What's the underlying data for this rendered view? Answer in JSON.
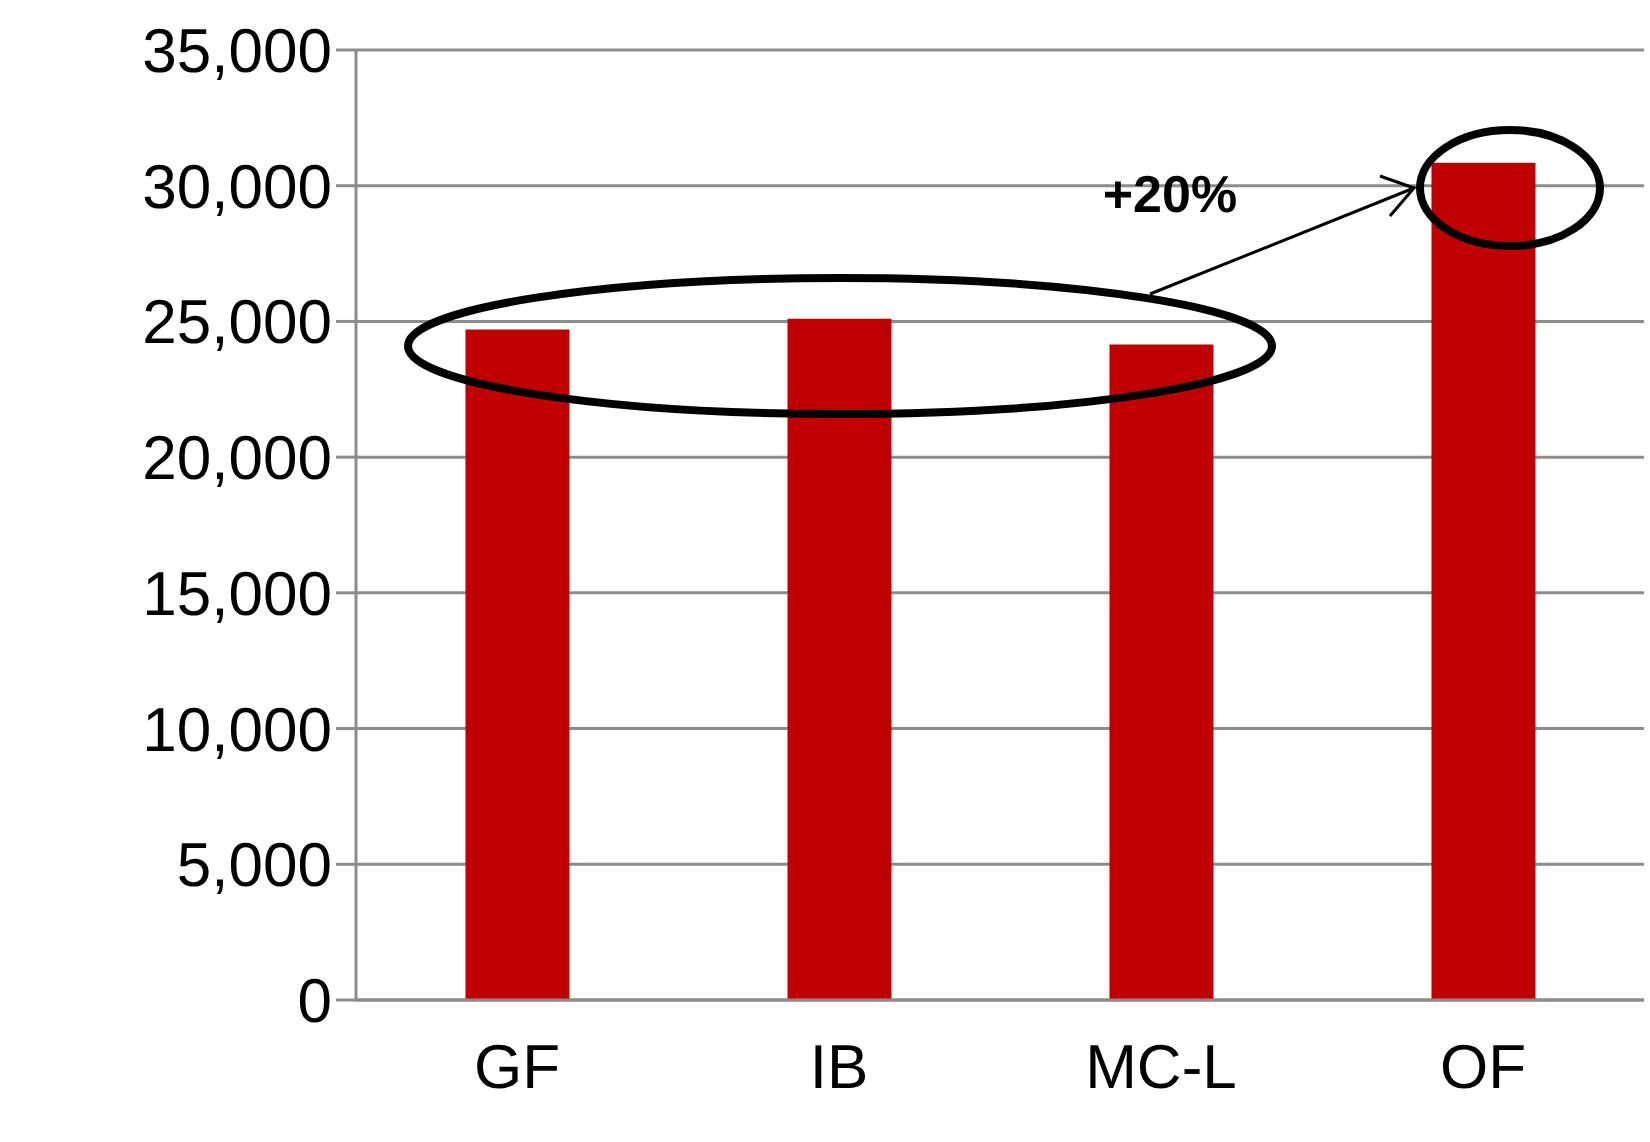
{
  "chart_data": {
    "type": "bar",
    "categories": [
      "GF",
      "IB",
      "MC-L",
      "OF"
    ],
    "values": [
      24700,
      25100,
      24150,
      30850
    ],
    "color": "#c00000",
    "ylim": [
      0,
      35000
    ],
    "yticks": [
      {
        "value": 0,
        "label": "0"
      },
      {
        "value": 5000,
        "label": "5,000"
      },
      {
        "value": 10000,
        "label": "10,000"
      },
      {
        "value": 15000,
        "label": "15,000"
      },
      {
        "value": 20000,
        "label": "20,000"
      },
      {
        "value": 25000,
        "label": "25,000"
      },
      {
        "value": 30000,
        "label": "30,000"
      },
      {
        "value": 35000,
        "label": "35,000"
      }
    ],
    "grid": "y",
    "annotations": [
      "+20%"
    ]
  }
}
